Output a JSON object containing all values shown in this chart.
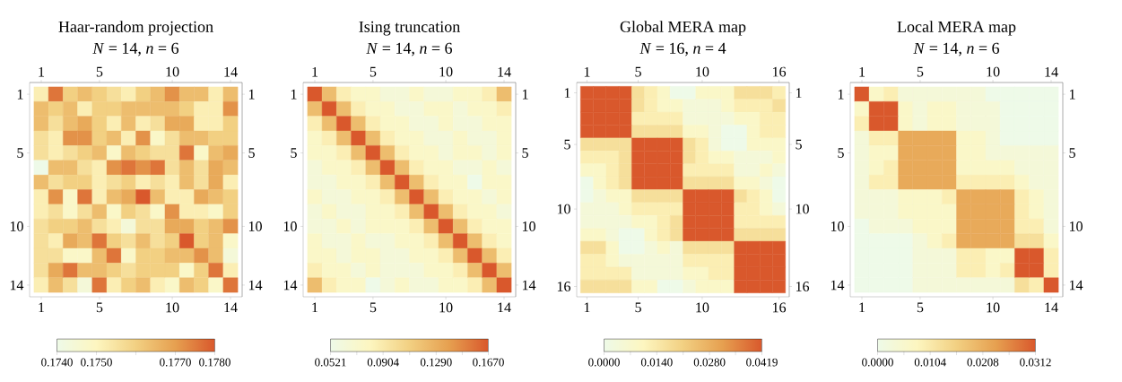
{
  "chart_data": [
    {
      "type": "heatmap",
      "title": "Haar-random projection",
      "subtitle": "*N* = 14,  *n* = 6",
      "categories": [
        "1",
        null,
        null,
        null,
        "5",
        null,
        null,
        null,
        null,
        "10",
        null,
        null,
        null,
        "14"
      ],
      "y_categories": [
        "1",
        null,
        null,
        null,
        "5",
        null,
        null,
        null,
        null,
        "10",
        null,
        null,
        null,
        "14"
      ],
      "y2_categories": [
        "1",
        null,
        null,
        null,
        "5",
        null,
        null,
        null,
        null,
        "10",
        null,
        null,
        null,
        "14"
      ],
      "clim": [
        0.174,
        0.178
      ],
      "cticks": [
        {
          "value": 0.174,
          "label": "0.1740"
        },
        {
          "value": 0.175,
          "label": "0.1750"
        },
        {
          "value": 0.176,
          "label": null
        },
        {
          "value": 0.177,
          "label": "0.1770"
        },
        {
          "value": 0.178,
          "label": "0.1780"
        }
      ],
      "cells": [
        [
          0.1752,
          0.1776,
          0.176,
          0.1764,
          0.176,
          0.1756,
          0.1752,
          0.176,
          0.1764,
          0.1772,
          0.1764,
          0.1764,
          0.1752,
          0.1764
        ],
        [
          0.1764,
          0.176,
          0.1764,
          0.1752,
          0.176,
          0.176,
          0.1764,
          0.1764,
          0.1764,
          0.1764,
          0.176,
          0.1752,
          0.1752,
          0.1772
        ],
        [
          0.1764,
          0.1756,
          0.1764,
          0.1768,
          0.176,
          0.1752,
          0.1764,
          0.1752,
          0.1756,
          0.1768,
          0.1768,
          0.1752,
          0.1752,
          0.176
        ],
        [
          0.1756,
          0.1752,
          0.1772,
          0.1772,
          0.176,
          0.1764,
          0.1752,
          0.1772,
          0.1748,
          0.1756,
          0.1764,
          0.1764,
          0.176,
          0.176
        ],
        [
          0.1756,
          0.1752,
          0.1756,
          0.176,
          0.1764,
          0.1748,
          0.1764,
          0.176,
          0.1756,
          0.1756,
          0.1776,
          0.1748,
          0.1764,
          0.1768
        ],
        [
          0.174,
          0.1764,
          0.1764,
          0.1756,
          0.1752,
          0.1772,
          0.1776,
          0.1772,
          0.1776,
          0.1756,
          0.1764,
          0.1756,
          0.1768,
          0.1764
        ],
        [
          0.1764,
          0.1756,
          0.176,
          0.176,
          0.1752,
          0.1756,
          0.176,
          0.1752,
          0.1756,
          0.1752,
          0.1764,
          0.1756,
          0.1768,
          0.1752
        ],
        [
          0.1752,
          0.1772,
          0.1748,
          0.1776,
          0.1752,
          0.1764,
          0.1768,
          0.178,
          0.1764,
          0.1752,
          0.1752,
          0.1768,
          0.1764,
          0.176
        ],
        [
          0.1752,
          0.1756,
          0.1748,
          0.1756,
          0.1764,
          0.1748,
          0.176,
          0.1756,
          0.1748,
          0.1772,
          0.1752,
          0.1752,
          0.1748,
          0.176
        ],
        [
          0.1756,
          0.176,
          0.176,
          0.1764,
          0.1756,
          0.1752,
          0.1744,
          0.1756,
          0.1756,
          0.1768,
          0.1768,
          0.176,
          0.1764,
          0.1772
        ],
        [
          0.1756,
          0.1752,
          0.1768,
          0.1764,
          0.1776,
          0.176,
          0.1756,
          0.1764,
          0.1756,
          0.176,
          0.178,
          0.176,
          0.1764,
          0.1748
        ],
        [
          0.1756,
          0.1756,
          0.1748,
          0.1748,
          0.1764,
          0.1776,
          0.1748,
          0.176,
          0.176,
          0.1764,
          0.1764,
          0.1772,
          0.1764,
          0.1744
        ],
        [
          0.1756,
          0.1768,
          0.1776,
          0.1764,
          0.1764,
          0.176,
          0.1756,
          0.176,
          0.176,
          0.176,
          0.1748,
          0.176,
          0.1776,
          0.1752
        ],
        [
          0.1752,
          0.1764,
          0.1756,
          0.1744,
          0.1776,
          0.1752,
          0.176,
          0.1764,
          0.1752,
          0.1748,
          0.1764,
          0.176,
          0.1748,
          0.1776
        ]
      ]
    },
    {
      "type": "heatmap",
      "title": "Ising truncation",
      "subtitle": "*N* = 14,  *n* = 6",
      "categories": [
        "1",
        null,
        null,
        null,
        "5",
        null,
        null,
        null,
        null,
        "10",
        null,
        null,
        null,
        "14"
      ],
      "y_categories": [
        "1",
        null,
        null,
        null,
        "5",
        null,
        null,
        null,
        null,
        "10",
        null,
        null,
        null,
        "14"
      ],
      "y2_categories": [
        "1",
        null,
        null,
        null,
        "5",
        null,
        null,
        null,
        null,
        "10",
        null,
        null,
        null,
        "14"
      ],
      "clim": [
        0.0521,
        0.167
      ],
      "cticks": [
        {
          "value": 0.0521,
          "label": "0.0521"
        },
        {
          "value": 0.07125,
          "label": null
        },
        {
          "value": 0.0904,
          "label": "0.0904"
        },
        {
          "value": 0.1097,
          "label": null
        },
        {
          "value": 0.129,
          "label": "0.1290"
        },
        {
          "value": 0.148,
          "label": null
        },
        {
          "value": 0.167,
          "label": "0.1670"
        }
      ],
      "cells": [
        [
          0.167,
          0.121,
          0.0866,
          0.0751,
          0.0751,
          0.0636,
          0.0636,
          0.0751,
          0.0636,
          0.0636,
          0.0751,
          0.0751,
          0.0866,
          0.121
        ],
        [
          0.121,
          0.167,
          0.121,
          0.0866,
          0.0751,
          0.0751,
          0.0636,
          0.0636,
          0.0751,
          0.0751,
          0.0636,
          0.0751,
          0.0751,
          0.0866
        ],
        [
          0.0866,
          0.121,
          0.167,
          0.121,
          0.0866,
          0.0751,
          0.0751,
          0.0636,
          0.0636,
          0.0751,
          0.0636,
          0.0636,
          0.0751,
          0.0751
        ],
        [
          0.0751,
          0.0866,
          0.121,
          0.167,
          0.121,
          0.0866,
          0.0751,
          0.0751,
          0.0636,
          0.0636,
          0.0751,
          0.0636,
          0.0636,
          0.0751
        ],
        [
          0.0751,
          0.0751,
          0.0866,
          0.121,
          0.167,
          0.121,
          0.0866,
          0.0751,
          0.0751,
          0.0636,
          0.0751,
          0.0751,
          0.0636,
          0.0751
        ],
        [
          0.0636,
          0.0751,
          0.0751,
          0.0866,
          0.121,
          0.167,
          0.121,
          0.0866,
          0.0751,
          0.0751,
          0.0636,
          0.0636,
          0.0751,
          0.0636
        ],
        [
          0.0636,
          0.0636,
          0.0751,
          0.0751,
          0.0866,
          0.121,
          0.167,
          0.121,
          0.0866,
          0.0751,
          0.0751,
          0.0521,
          0.0751,
          0.0751
        ],
        [
          0.0751,
          0.0636,
          0.0636,
          0.0751,
          0.0751,
          0.0866,
          0.121,
          0.167,
          0.121,
          0.0866,
          0.0751,
          0.0751,
          0.0636,
          0.0751
        ],
        [
          0.0636,
          0.0751,
          0.0636,
          0.0636,
          0.0751,
          0.0751,
          0.0866,
          0.121,
          0.167,
          0.121,
          0.0866,
          0.0751,
          0.0751,
          0.0636
        ],
        [
          0.0636,
          0.0636,
          0.0751,
          0.0636,
          0.0751,
          0.0751,
          0.0751,
          0.0866,
          0.121,
          0.167,
          0.121,
          0.0866,
          0.0751,
          0.0751
        ],
        [
          0.0751,
          0.0636,
          0.0636,
          0.0751,
          0.0636,
          0.0636,
          0.0751,
          0.0751,
          0.0866,
          0.121,
          0.167,
          0.121,
          0.0866,
          0.0751
        ],
        [
          0.0751,
          0.0751,
          0.0636,
          0.0751,
          0.0751,
          0.0636,
          0.0636,
          0.0751,
          0.0751,
          0.0866,
          0.121,
          0.167,
          0.121,
          0.0866
        ],
        [
          0.0866,
          0.0751,
          0.0751,
          0.0636,
          0.0751,
          0.0636,
          0.0636,
          0.0636,
          0.0751,
          0.0751,
          0.0866,
          0.121,
          0.167,
          0.121
        ],
        [
          0.121,
          0.0866,
          0.0751,
          0.0751,
          0.0521,
          0.0636,
          0.0751,
          0.0636,
          0.0636,
          0.0751,
          0.0751,
          0.0866,
          0.121,
          0.167
        ]
      ]
    },
    {
      "type": "heatmap",
      "title": "Global MERA map",
      "subtitle": "*N* = 16,  *n* = 4",
      "categories": [
        "1",
        null,
        null,
        null,
        "5",
        null,
        null,
        null,
        null,
        "10",
        null,
        null,
        null,
        null,
        null,
        "16"
      ],
      "y_categories": [
        "1",
        null,
        null,
        null,
        "5",
        null,
        null,
        null,
        null,
        "10",
        null,
        null,
        null,
        null,
        null,
        "16"
      ],
      "y2_categories": [
        "1",
        null,
        null,
        null,
        "5",
        null,
        null,
        null,
        null,
        "10",
        null,
        null,
        null,
        null,
        null,
        "16"
      ],
      "clim": [
        0,
        0.0419
      ],
      "cticks": [
        {
          "value": 0,
          "label": "0.0000"
        },
        {
          "value": 0.007,
          "label": null
        },
        {
          "value": 0.014,
          "label": "0.0140"
        },
        {
          "value": 0.021,
          "label": null
        },
        {
          "value": 0.028,
          "label": "0.0280"
        },
        {
          "value": 0.0349,
          "label": null
        },
        {
          "value": 0.0419,
          "label": "0.0419"
        }
      ],
      "cells": [
        [
          0.0419,
          0.0419,
          0.0419,
          0.0419,
          0.0168,
          0.0126,
          0.0084,
          0,
          0,
          0.0084,
          0.0084,
          0.0084,
          0.0168,
          0.0168,
          0.0168,
          0.0126
        ],
        [
          0.0419,
          0.0419,
          0.0419,
          0.0419,
          0.0168,
          0.0126,
          0.0084,
          0.0084,
          0.0042,
          0.0042,
          0.0042,
          0.0084,
          0.0126,
          0.0126,
          0.0126,
          0.0168
        ],
        [
          0.0419,
          0.0419,
          0.0419,
          0.0419,
          0.0126,
          0.0126,
          0.0126,
          0.0126,
          0.0042,
          0.0042,
          0.0042,
          0.0042,
          0.0084,
          0.0084,
          0.0126,
          0.0126
        ],
        [
          0.0419,
          0.0419,
          0.0419,
          0.0419,
          0.0168,
          0.0168,
          0.0168,
          0.0168,
          0.0084,
          0.0084,
          0.0042,
          0,
          0,
          0.0084,
          0.0126,
          0.0126
        ],
        [
          0.0168,
          0.0168,
          0.0168,
          0.0168,
          0.0419,
          0.0419,
          0.0419,
          0.0419,
          0.0168,
          0.0126,
          0.0042,
          0,
          0,
          0.0084,
          0.0084,
          0.0084
        ],
        [
          0.0126,
          0.0126,
          0.0126,
          0.0168,
          0.0419,
          0.0419,
          0.0419,
          0.0419,
          0.0168,
          0.0126,
          0.0084,
          0.0084,
          0.0042,
          0.0042,
          0.0042,
          0.0084
        ],
        [
          0.0084,
          0.0084,
          0.0126,
          0.0168,
          0.0419,
          0.0419,
          0.0419,
          0.0419,
          0.0126,
          0.0126,
          0.0126,
          0.0126,
          0.0042,
          0.0042,
          0.0084,
          0.0042
        ],
        [
          0,
          0.0084,
          0.0126,
          0.0168,
          0.0419,
          0.0419,
          0.0419,
          0.0419,
          0.0168,
          0.0168,
          0.0168,
          0.0168,
          0.0084,
          0.0084,
          0.0042,
          0
        ],
        [
          0,
          0.0042,
          0.0084,
          0.0084,
          0.0168,
          0.0168,
          0.0168,
          0.0168,
          0.0419,
          0.0419,
          0.0419,
          0.0419,
          0.0168,
          0.0126,
          0.0084,
          0
        ],
        [
          0.0042,
          0.0042,
          0.0042,
          0.0084,
          0.0126,
          0.0126,
          0.0126,
          0.0126,
          0.0419,
          0.0419,
          0.0419,
          0.0419,
          0.0126,
          0.0126,
          0.0084,
          0.0042
        ],
        [
          0.0042,
          0.0042,
          0.0042,
          0.0042,
          0.0084,
          0.0084,
          0.0126,
          0.0168,
          0.0419,
          0.0419,
          0.0419,
          0.0419,
          0.0126,
          0.0126,
          0.0126,
          0.0126
        ],
        [
          0.0084,
          0.0084,
          0.0042,
          0,
          0,
          0.0084,
          0.0126,
          0.0168,
          0.0419,
          0.0419,
          0.0419,
          0.0419,
          0.0168,
          0.0168,
          0.0168,
          0.0168
        ],
        [
          0.0168,
          0.0168,
          0.0084,
          0,
          0,
          0.0042,
          0.0084,
          0.0042,
          0.0168,
          0.0168,
          0.0168,
          0.0168,
          0.0419,
          0.0419,
          0.0419,
          0.0419
        ],
        [
          0.0126,
          0.0126,
          0.0084,
          0.0042,
          0.0042,
          0.0042,
          0.0042,
          0.0042,
          0.0126,
          0.0126,
          0.0126,
          0.0126,
          0.0419,
          0.0419,
          0.0419,
          0.0419
        ],
        [
          0.0126,
          0.0126,
          0.0126,
          0.0126,
          0.0042,
          0.0042,
          0.0042,
          0.0042,
          0.0084,
          0.0084,
          0.0126,
          0.0126,
          0.0419,
          0.0419,
          0.0419,
          0.0419
        ],
        [
          0.0168,
          0.0168,
          0.0168,
          0.0168,
          0.0084,
          0.0084,
          0,
          0,
          0.0042,
          0.0084,
          0.0084,
          0.0084,
          0.0419,
          0.0419,
          0.0419,
          0.0419
        ]
      ]
    },
    {
      "type": "heatmap",
      "title": "Local MERA map",
      "subtitle": "*N* = 14,  *n* = 6",
      "categories": [
        "1",
        null,
        null,
        null,
        "5",
        null,
        null,
        null,
        null,
        "10",
        null,
        null,
        null,
        "14"
      ],
      "y_categories": [
        "1",
        null,
        null,
        null,
        "5",
        null,
        null,
        null,
        null,
        "10",
        null,
        null,
        null,
        "14"
      ],
      "y2_categories": [
        "1",
        null,
        null,
        null,
        "5",
        null,
        null,
        null,
        null,
        "10",
        null,
        null,
        null,
        "14"
      ],
      "clim": [
        0,
        0.0312
      ],
      "cticks": [
        {
          "value": 0,
          "label": "0.0000"
        },
        {
          "value": 0.0052,
          "label": null
        },
        {
          "value": 0.0104,
          "label": "0.0104"
        },
        {
          "value": 0.0156,
          "label": null
        },
        {
          "value": 0.0208,
          "label": "0.0208"
        },
        {
          "value": 0.026,
          "label": null
        },
        {
          "value": 0.0312,
          "label": "0.0312"
        }
      ],
      "cells": [
        [
          0.0312,
          0.0062,
          0.0094,
          0.0031,
          0.0031,
          0.0031,
          0.0031,
          0.0031,
          0.0031,
          0,
          0,
          0,
          0,
          0
        ],
        [
          0.0062,
          0.0312,
          0.0312,
          0.0062,
          0.0031,
          0.0062,
          0.0062,
          0.0031,
          0.0031,
          0.0031,
          0,
          0,
          0,
          0
        ],
        [
          0.0094,
          0.0312,
          0.0312,
          0.0062,
          0.0031,
          0.0062,
          0.0062,
          0.0031,
          0.0031,
          0.0031,
          0,
          0,
          0,
          0
        ],
        [
          0.0031,
          0.0094,
          0.0094,
          0.0218,
          0.0218,
          0.0218,
          0.0218,
          0.0062,
          0.0062,
          0.0031,
          0,
          0,
          0,
          0
        ],
        [
          0.0031,
          0.0062,
          0.0062,
          0.0218,
          0.0218,
          0.0218,
          0.0218,
          0.0062,
          0.0062,
          0.0031,
          0.0031,
          0.0031,
          0.0031,
          0.0031
        ],
        [
          0.0031,
          0.0062,
          0.0094,
          0.0218,
          0.0218,
          0.0218,
          0.0218,
          0.0062,
          0.0062,
          0.0062,
          0.0062,
          0.0031,
          0.0031,
          0.0031
        ],
        [
          0.0031,
          0.0094,
          0.0094,
          0.0218,
          0.0218,
          0.0218,
          0.0218,
          0.0094,
          0.0094,
          0.0094,
          0.0094,
          0.0062,
          0.0031,
          0.0031
        ],
        [
          0.0031,
          0.0031,
          0.0031,
          0.0062,
          0.0062,
          0.0062,
          0.0094,
          0.0218,
          0.0218,
          0.0218,
          0.0218,
          0.0094,
          0.0062,
          0.0031
        ],
        [
          0.0031,
          0.0031,
          0.0031,
          0.0062,
          0.0062,
          0.0062,
          0.0062,
          0.0218,
          0.0218,
          0.0218,
          0.0218,
          0.0094,
          0.0062,
          0.0031
        ],
        [
          0,
          0.0031,
          0.0031,
          0.0031,
          0.0062,
          0.0062,
          0.0062,
          0.0218,
          0.0218,
          0.0218,
          0.0218,
          0.0094,
          0.0094,
          0.0031
        ],
        [
          0,
          0,
          0,
          0,
          0.0031,
          0.0062,
          0.0094,
          0.0218,
          0.0218,
          0.0218,
          0.0218,
          0.0125,
          0.0125,
          0.0062
        ],
        [
          0,
          0,
          0,
          0,
          0.0031,
          0.0031,
          0.0031,
          0.0094,
          0.0094,
          0.0062,
          0.0062,
          0.0312,
          0.0312,
          0.0094
        ],
        [
          0,
          0,
          0,
          0,
          0.0031,
          0.0031,
          0.0031,
          0.0094,
          0.0094,
          0.0062,
          0.0094,
          0.0312,
          0.0312,
          0.0094
        ],
        [
          0,
          0,
          0,
          0,
          0.0031,
          0.0031,
          0.0031,
          0.0031,
          0.0031,
          0.0031,
          0.0031,
          0.0125,
          0.0094,
          0.0312
        ]
      ]
    }
  ]
}
